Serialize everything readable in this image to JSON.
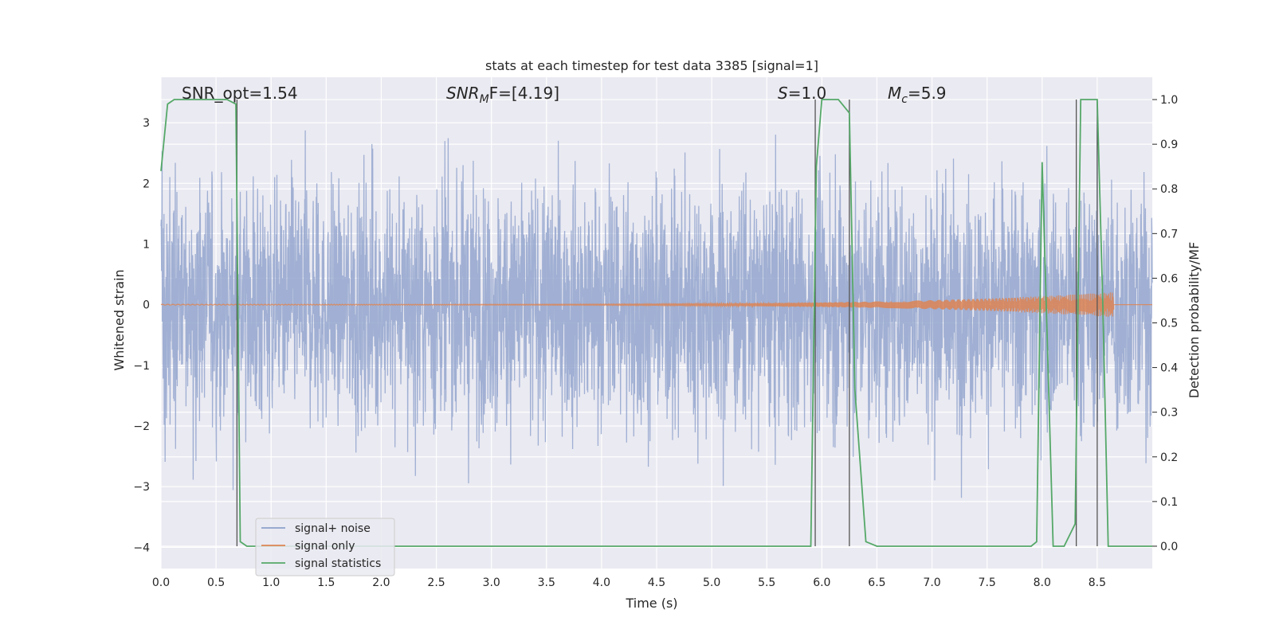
{
  "chart_data": {
    "type": "line",
    "title": "stats at each timestep for test data 3385 [signal=1]",
    "xlabel": "Time (s)",
    "ylabel": "Whitened strain",
    "ylabel_right": "Detection probability/MF",
    "xlim": [
      0,
      9.0
    ],
    "ylim": [
      -4.35,
      3.75
    ],
    "ylim_right": [
      -0.05,
      1.05
    ],
    "xticks": [
      "0.0",
      "0.5",
      "1.0",
      "1.5",
      "2.0",
      "2.5",
      "3.0",
      "3.5",
      "4.0",
      "4.5",
      "5.0",
      "5.5",
      "6.0",
      "6.5",
      "7.0",
      "7.5",
      "8.0",
      "8.5"
    ],
    "yticks": [
      "−4",
      "−3",
      "−2",
      "−1",
      "0",
      "1",
      "2",
      "3"
    ],
    "yticks_right": [
      "0.0",
      "0.1",
      "0.2",
      "0.3",
      "0.4",
      "0.5",
      "0.6",
      "0.7",
      "0.8",
      "0.9",
      "1.0"
    ],
    "grid": true,
    "legend_position": "lower-left",
    "annotations": {
      "snr_opt": "SNR_opt=1.54",
      "snr_mf_main": "SNR",
      "snr_mf_sub": "M",
      "snr_mf_rest": "F=[4.19]",
      "s_main": "S",
      "s_rest": "=1.0",
      "mc_main": "M",
      "mc_sub": "c",
      "mc_rest": "=5.9"
    },
    "series": [
      {
        "name": "signal+ noise",
        "color": "#8da0cb",
        "stats": {
          "spread": 1.0,
          "envelope_max": 3.3,
          "envelope_min": -4.0
        }
      },
      {
        "name": "signal only",
        "color": "#dd8452",
        "stats": {
          "amplitude_end": 0.2,
          "start": 0,
          "end": 8.65
        }
      },
      {
        "name": "signal statistics",
        "color": "#55a868",
        "x": [
          0.0,
          0.06,
          0.12,
          0.2,
          0.3,
          0.4,
          0.5,
          0.6,
          0.68,
          0.72,
          0.78,
          0.85,
          1.0,
          2.0,
          3.0,
          4.0,
          5.0,
          5.5,
          5.85,
          5.9,
          5.95,
          6.0,
          6.15,
          6.25,
          6.3,
          6.4,
          6.5,
          6.75,
          7.0,
          7.5,
          7.9,
          7.95,
          8.0,
          8.1,
          8.2,
          8.3,
          8.35,
          8.4,
          8.5,
          8.55,
          8.6,
          8.7,
          9.0
        ],
        "values": [
          0.84,
          0.99,
          1.0,
          1.0,
          1.0,
          1.0,
          1.0,
          1.0,
          0.99,
          0.01,
          0.0,
          0.0,
          0.0,
          0.0,
          0.0,
          0.0,
          0.0,
          0.0,
          0.0,
          0.0,
          0.85,
          1.0,
          1.0,
          0.97,
          0.35,
          0.01,
          0.0,
          0.0,
          0.0,
          0.0,
          0.0,
          0.01,
          0.86,
          0.0,
          0.0,
          0.05,
          1.0,
          1.0,
          1.0,
          0.55,
          0.0,
          0.0,
          0.0
        ]
      }
    ],
    "vertical_lines_x": [
      0.69,
      5.94,
      6.25,
      8.31,
      8.5
    ]
  },
  "legend": {
    "items": [
      "signal+ noise",
      "signal only",
      "signal statistics"
    ]
  }
}
